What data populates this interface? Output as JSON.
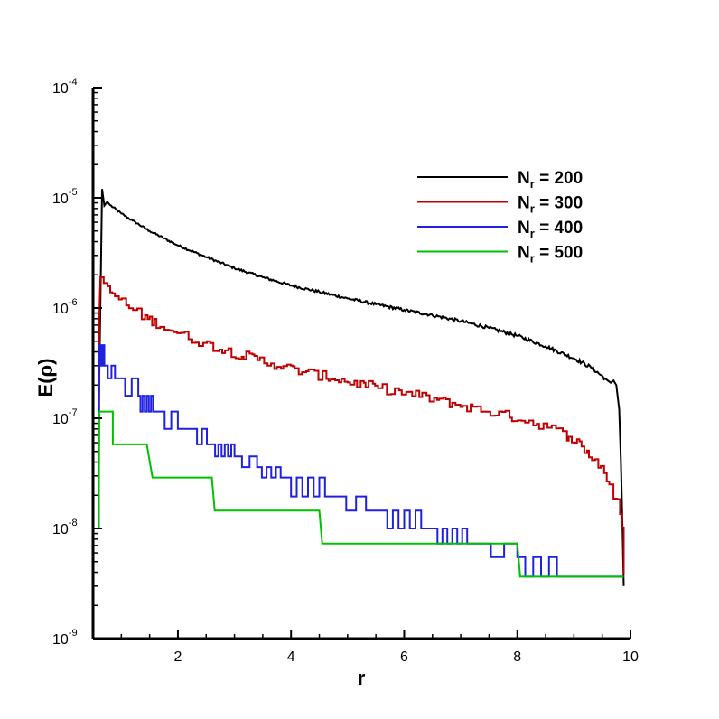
{
  "chart_data": {
    "type": "line",
    "title": "",
    "xlabel": "r",
    "ylabel": "E(ρ)",
    "xlim": [
      0.5,
      10
    ],
    "ylim_log10": [
      -9,
      -4
    ],
    "y_scale": "log",
    "grid": false,
    "legend_position": "top-right",
    "x_ticks": [
      2,
      4,
      6,
      8,
      10
    ],
    "x_tick_labels": [
      "2",
      "4",
      "6",
      "8",
      "10"
    ],
    "y_ticks_log10": [
      -9,
      -8,
      -7,
      -6,
      -5,
      -4
    ],
    "y_tick_base": "10",
    "y_tick_exponents": [
      "-9",
      "-8",
      "-7",
      "-6",
      "-5",
      "-4"
    ],
    "series": [
      {
        "name": "N_r = 200",
        "label_main": "N",
        "label_sub": "r",
        "label_rest": " = 200",
        "color": "#000000",
        "style": "smooth",
        "points": [
          [
            0.6,
            1.1e-07
          ],
          [
            0.63,
            1e-06
          ],
          [
            0.66,
            1.2e-05
          ],
          [
            0.7,
            8.5e-06
          ],
          [
            0.75,
            9.2e-06
          ],
          [
            0.8,
            8.6e-06
          ],
          [
            1.0,
            7.2e-06
          ],
          [
            1.2,
            6.2e-06
          ],
          [
            1.5,
            5e-06
          ],
          [
            2.0,
            3.7e-06
          ],
          [
            2.5,
            2.9e-06
          ],
          [
            3.0,
            2.3e-06
          ],
          [
            3.5,
            1.9e-06
          ],
          [
            4.0,
            1.6e-06
          ],
          [
            4.5,
            1.4e-06
          ],
          [
            5.0,
            1.22e-06
          ],
          [
            5.5,
            1.08e-06
          ],
          [
            6.0,
            9.6e-07
          ],
          [
            6.5,
            8.6e-07
          ],
          [
            7.0,
            7.6e-07
          ],
          [
            7.5,
            6.6e-07
          ],
          [
            8.0,
            5.6e-07
          ],
          [
            8.5,
            4.5e-07
          ],
          [
            9.0,
            3.5e-07
          ],
          [
            9.3,
            2.9e-07
          ],
          [
            9.55,
            2.3e-07
          ],
          [
            9.65,
            2.1e-07
          ],
          [
            9.7,
            2.2e-07
          ],
          [
            9.75,
            2e-07
          ],
          [
            9.8,
            1.2e-07
          ],
          [
            9.83,
            4e-08
          ],
          [
            9.86,
            1e-08
          ],
          [
            9.88,
            3e-09
          ]
        ]
      },
      {
        "name": "N_r = 300",
        "label_main": "N",
        "label_sub": "r",
        "label_rest": " = 300",
        "color": "#c00000",
        "style": "noisy",
        "points": [
          [
            0.6,
            1e-08
          ],
          [
            0.61,
            8e-07
          ],
          [
            0.63,
            1.9e-06
          ],
          [
            0.66,
            1.6e-06
          ],
          [
            0.8,
            1.4e-06
          ],
          [
            1.0,
            1.15e-06
          ],
          [
            1.2,
            9.5e-07
          ],
          [
            1.5,
            7.8e-07
          ],
          [
            2.0,
            5.9e-07
          ],
          [
            2.5,
            4.7e-07
          ],
          [
            3.0,
            3.9e-07
          ],
          [
            3.5,
            3.3e-07
          ],
          [
            4.0,
            2.8e-07
          ],
          [
            4.5,
            2.45e-07
          ],
          [
            5.0,
            2.15e-07
          ],
          [
            5.5,
            1.9e-07
          ],
          [
            6.0,
            1.7e-07
          ],
          [
            6.5,
            1.5e-07
          ],
          [
            7.0,
            1.3e-07
          ],
          [
            7.5,
            1.15e-07
          ],
          [
            8.0,
            1e-07
          ],
          [
            8.5,
            8.5e-08
          ],
          [
            9.0,
            6.5e-08
          ],
          [
            9.5,
            3.5e-08
          ],
          [
            9.8,
            1.5e-08
          ],
          [
            9.88,
            8e-09
          ]
        ]
      },
      {
        "name": "N_r = 400",
        "label_main": "N",
        "label_sub": "r",
        "label_rest": " = 400",
        "color": "#2020e0",
        "style": "steps",
        "points": [
          [
            0.6,
            1e-08
          ],
          [
            0.61,
            2e-07
          ],
          [
            0.63,
            4e-07
          ],
          [
            0.66,
            3.2e-07
          ],
          [
            0.8,
            2.5e-07
          ],
          [
            1.0,
            2.2e-07
          ],
          [
            1.2,
            1.8e-07
          ],
          [
            1.5,
            1.4e-07
          ],
          [
            2.0,
            1.1e-07
          ],
          [
            2.5,
            8e-08
          ],
          [
            3.0,
            6e-08
          ],
          [
            3.5,
            4.5e-08
          ],
          [
            4.0,
            3.6e-08
          ],
          [
            4.5,
            2.9e-08
          ],
          [
            5.0,
            2.4e-08
          ],
          [
            5.5,
            2e-08
          ],
          [
            6.0,
            1.8e-08
          ],
          [
            6.5,
            1.6e-08
          ],
          [
            7.0,
            1.4e-08
          ],
          [
            7.5,
            1.15e-08
          ],
          [
            8.0,
            1e-08
          ],
          [
            8.5,
            8e-09
          ],
          [
            9.0,
            6e-09
          ],
          [
            9.5,
            4e-09
          ],
          [
            9.88,
            3.8e-09
          ]
        ]
      },
      {
        "name": "N_r = 500",
        "label_main": "N",
        "label_sub": "r",
        "label_rest": " = 500",
        "color": "#00c000",
        "style": "clean-steps",
        "points": [
          [
            0.6,
            1e-08
          ],
          [
            0.61,
            1.15e-07
          ],
          [
            0.85,
            1.15e-07
          ],
          [
            0.85,
            5.8e-08
          ],
          [
            1.45,
            5.8e-08
          ],
          [
            1.55,
            2.9e-08
          ],
          [
            2.6,
            2.9e-08
          ],
          [
            2.65,
            1.45e-08
          ],
          [
            4.5,
            1.45e-08
          ],
          [
            4.55,
            7.3e-09
          ],
          [
            8.0,
            7.3e-09
          ],
          [
            8.05,
            3.65e-09
          ],
          [
            9.88,
            3.65e-09
          ]
        ]
      }
    ]
  }
}
